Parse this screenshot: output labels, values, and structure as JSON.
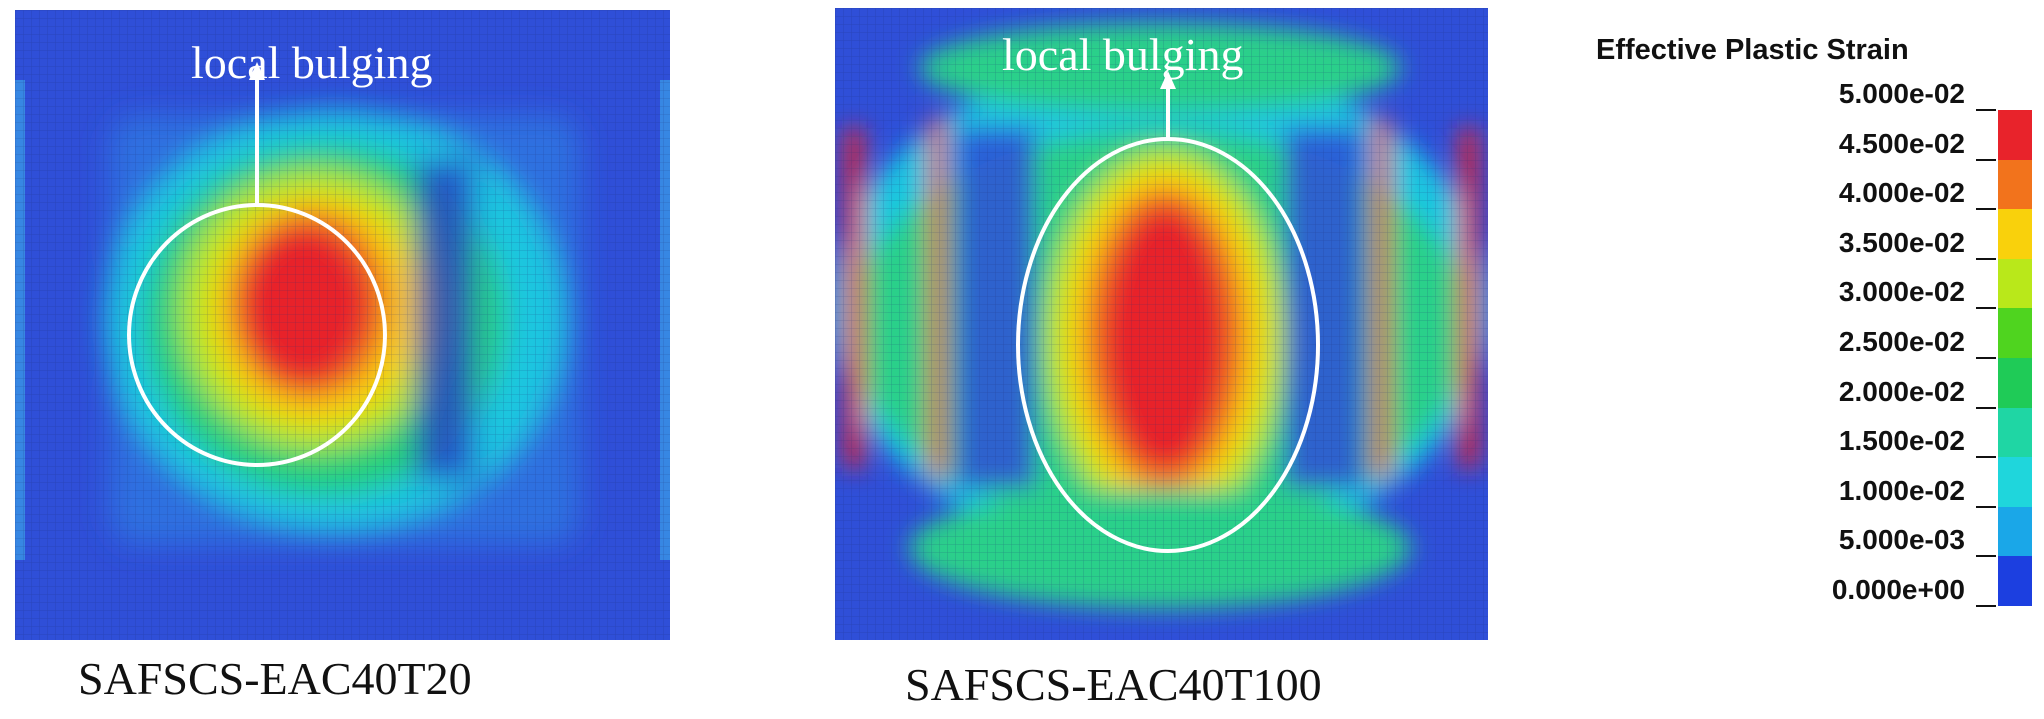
{
  "panels": [
    {
      "annotation": "local bulging",
      "caption": "SAFSCS-EAC40T20"
    },
    {
      "annotation": "local bulging",
      "caption": "SAFSCS-EAC40T100"
    }
  ],
  "legend": {
    "title": "Effective Plastic Strain",
    "labels": [
      "5.000e-02",
      "4.500e-02",
      "4.000e-02",
      "3.500e-02",
      "3.000e-02",
      "2.500e-02",
      "2.000e-02",
      "1.500e-02",
      "1.000e-02",
      "5.000e-03",
      "0.000e+00"
    ],
    "colors_top_to_bottom": [
      "#e8232b",
      "#f2731c",
      "#f9d10c",
      "#b9e81a",
      "#4fd41f",
      "#1fcb57",
      "#1fd6a4",
      "#1fd6dc",
      "#1aa7e8",
      "#1c3fe0"
    ]
  },
  "colors": {
    "background_blue": "#2f4fd8",
    "annotation_white": "#ffffff"
  }
}
